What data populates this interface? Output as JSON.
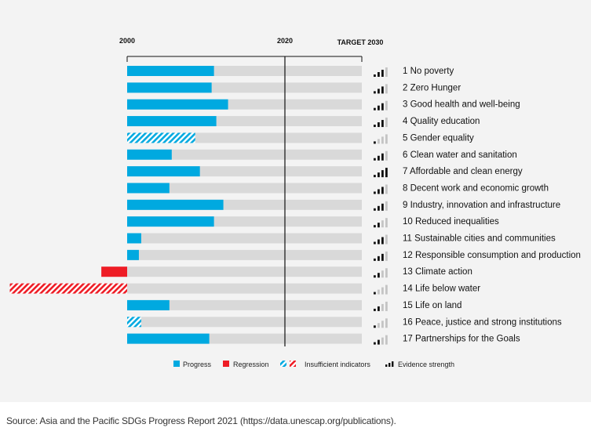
{
  "chart_data": {
    "type": "bar",
    "orientation": "horizontal",
    "axis_labels": {
      "start": "2000",
      "current": "2020",
      "target": "TARGET 2030"
    },
    "categories": [
      "1 No poverty",
      "2 Zero Hunger",
      "3 Good health and well-being",
      "4 Quality education",
      "5 Gender equality",
      "6 Clean water and sanitation",
      "7 Affordable and clean energy",
      "8 Decent work and economic growth",
      "9 Industry, innovation and infrastructure",
      "10 Reduced inequalities",
      "11 Sustainable cities and communities",
      "12 Responsible consumption and production",
      "13 Climate action",
      "14 Life below water",
      "15 Life on land",
      "16 Peace, justice and strong institutions",
      "17 Partnerships for the Goals"
    ],
    "values": [
      0.37,
      0.36,
      0.43,
      0.38,
      0.29,
      0.19,
      0.31,
      0.18,
      0.41,
      0.37,
      0.06,
      0.05,
      -0.11,
      -0.5,
      0.18,
      0.06,
      0.35
    ],
    "status": [
      "progress",
      "progress",
      "progress",
      "progress",
      "insufficient",
      "progress",
      "progress",
      "progress",
      "progress",
      "progress",
      "progress",
      "progress",
      "regression",
      "insufficient",
      "progress",
      "insufficient",
      "progress"
    ],
    "evidence_strength": [
      3,
      3,
      3,
      3,
      1,
      3,
      4,
      3,
      3,
      2,
      3,
      3,
      2,
      1,
      2,
      1,
      2
    ],
    "xlim": [
      -0.5,
      1
    ],
    "legend": [
      {
        "key": "progress",
        "label": "Progress"
      },
      {
        "key": "regression",
        "label": "Regression"
      },
      {
        "key": "insufficient",
        "label": "Insufficient indicators"
      },
      {
        "key": "evidence",
        "label": "Evidence strength"
      }
    ],
    "colors": {
      "progress": "#00a9e0",
      "regression": "#ee1c25",
      "track": "#d9d9d9",
      "evidence_on": "#111111",
      "evidence_off": "#c4c4c4"
    }
  },
  "source": "Source: Asia and the Pacific SDGs Progress Report 2021 (https://data.unescap.org/publications)."
}
